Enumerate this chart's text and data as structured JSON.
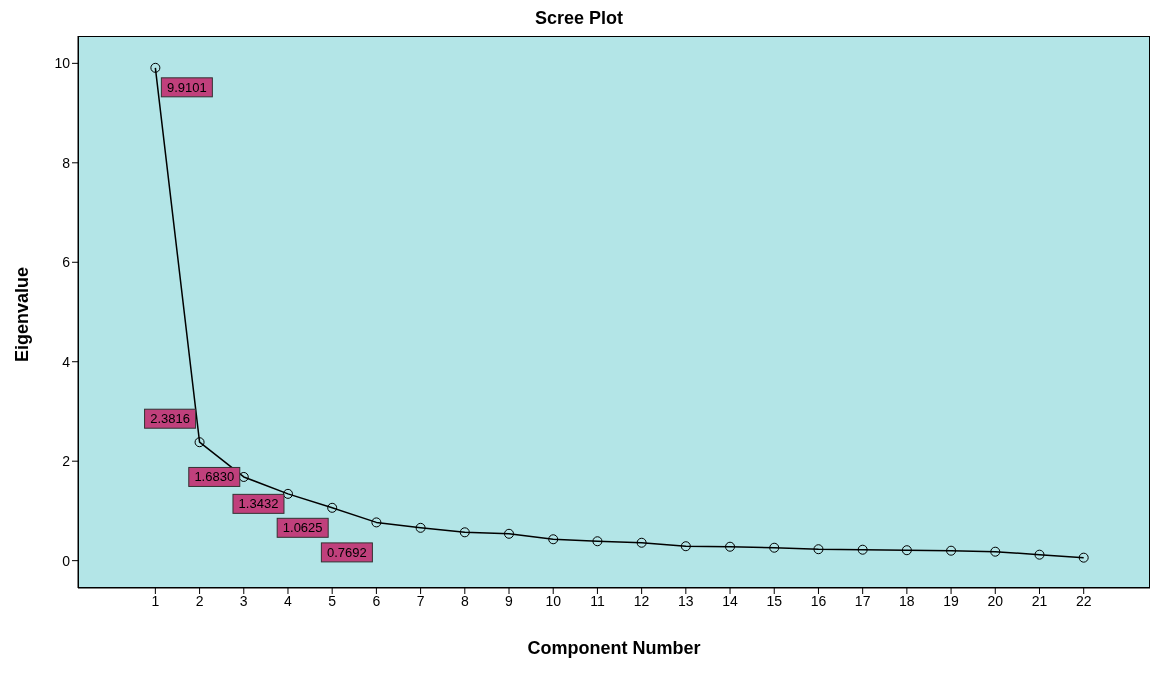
{
  "chart_data": {
    "type": "line",
    "title": "Scree Plot",
    "xlabel": "Component Number",
    "ylabel": "Eigenvalue",
    "x": [
      1,
      2,
      3,
      4,
      5,
      6,
      7,
      8,
      9,
      10,
      11,
      12,
      13,
      14,
      15,
      16,
      17,
      18,
      19,
      20,
      21,
      22
    ],
    "series": [
      {
        "color": "#000000",
        "values": [
          9.9101,
          2.3816,
          1.683,
          1.3432,
          1.0625,
          0.7692,
          0.66,
          0.57,
          0.54,
          0.43,
          0.39,
          0.36,
          0.29,
          0.28,
          0.26,
          0.23,
          0.22,
          0.21,
          0.2,
          0.18,
          0.12,
          0.06
        ]
      }
    ],
    "value_labels": [
      "9.9101",
      "2.3816",
      "1.6830",
      "1.3432",
      "1.0625",
      "0.7692",
      null,
      null,
      null,
      null,
      null,
      null,
      null,
      null,
      null,
      null,
      null,
      null,
      null,
      null,
      null,
      null
    ],
    "xlim": [
      -0.75,
      23.5
    ],
    "xticks": [
      1,
      2,
      3,
      4,
      5,
      6,
      7,
      8,
      9,
      10,
      11,
      12,
      13,
      14,
      15,
      16,
      17,
      18,
      19,
      20,
      21,
      22
    ],
    "ylim": [
      -0.55,
      10.55
    ],
    "yticks": [
      0,
      2,
      4,
      6,
      8,
      10
    ],
    "grid": false,
    "legend": false,
    "marker": "circle",
    "line_style": "solid"
  }
}
